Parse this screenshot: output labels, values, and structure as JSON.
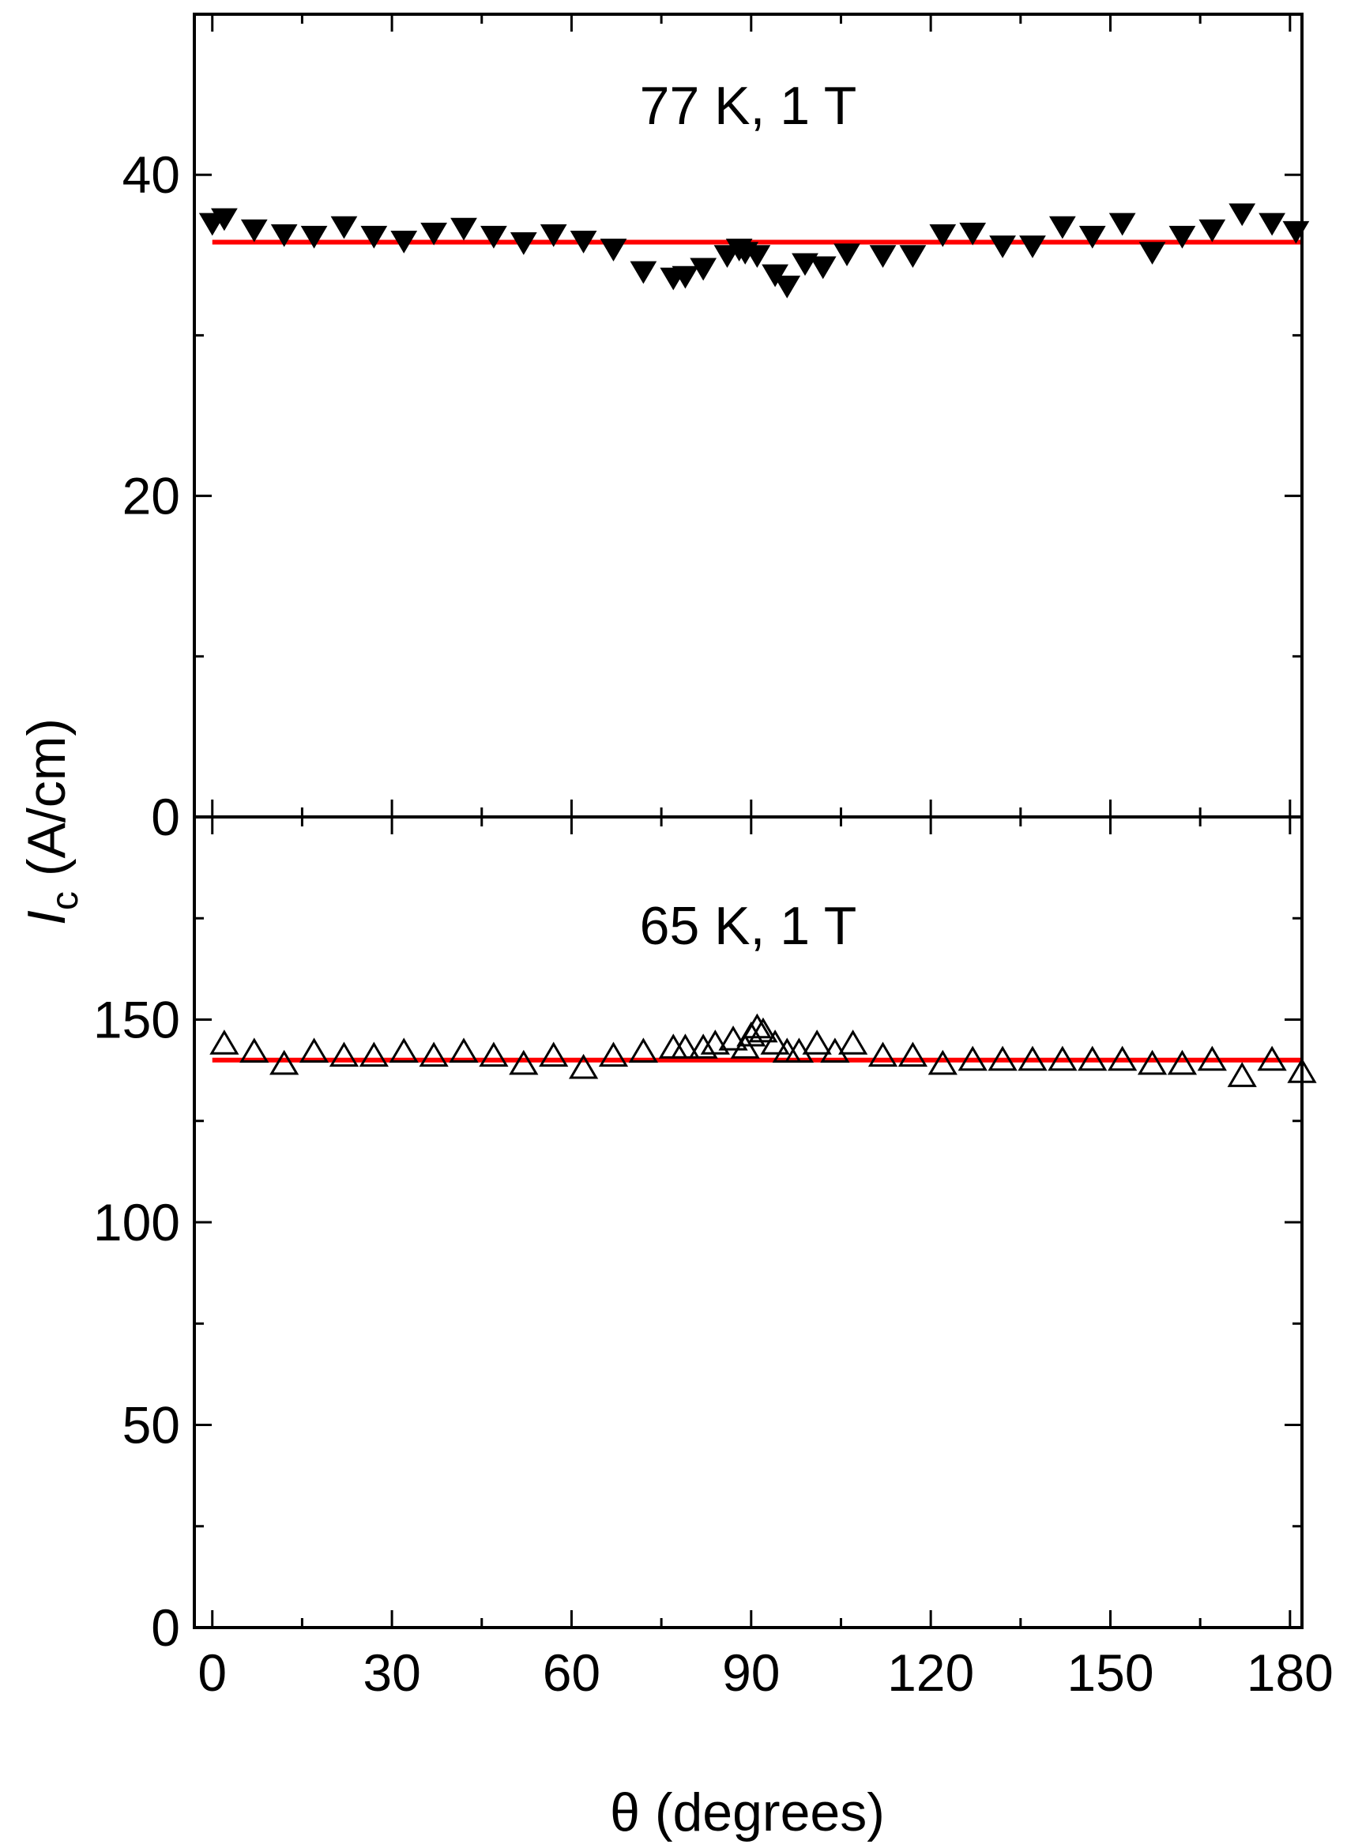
{
  "colors": {
    "fit_line": "#ff0000",
    "marker": "#000000",
    "frame": "#000000",
    "background": "#ffffff"
  },
  "chart_data": [
    {
      "type": "scatter",
      "panel": "top",
      "annotation": "77 K, 1 T",
      "xlim": [
        -3,
        182
      ],
      "ylim": [
        0,
        50
      ],
      "y_ticks": [
        0,
        20,
        40
      ],
      "y_minor_ticks": [
        10,
        30
      ],
      "marker": "filled-down-triangle",
      "x": [
        0,
        2,
        7,
        12,
        17,
        22,
        27,
        32,
        37,
        42,
        47,
        52,
        57,
        62,
        67,
        72,
        77,
        79,
        82,
        86,
        88,
        89,
        91,
        94,
        96,
        99,
        102,
        106,
        112,
        117,
        122,
        127,
        132,
        137,
        142,
        147,
        152,
        157,
        162,
        167,
        172,
        177,
        181
      ],
      "y": [
        37.0,
        37.3,
        36.6,
        36.3,
        36.2,
        36.8,
        36.2,
        35.9,
        36.4,
        36.7,
        36.2,
        35.8,
        36.3,
        35.9,
        35.4,
        34.0,
        33.6,
        33.7,
        34.2,
        35.0,
        35.4,
        35.2,
        35.0,
        33.8,
        33.1,
        34.5,
        34.3,
        35.1,
        35.0,
        35.0,
        36.3,
        36.4,
        35.6,
        35.6,
        36.8,
        36.2,
        37.0,
        35.2,
        36.2,
        36.6,
        37.6,
        37.0,
        36.5
      ],
      "fit": {
        "y": 35.8,
        "x_range": [
          0,
          182
        ]
      }
    },
    {
      "type": "scatter",
      "panel": "bottom",
      "annotation": "65 K, 1 T",
      "xlim": [
        -3,
        182
      ],
      "ylim": [
        0,
        200
      ],
      "y_ticks": [
        0,
        50,
        100,
        150
      ],
      "y_minor_ticks": [
        25,
        75,
        125,
        175
      ],
      "marker": "open-up-triangle",
      "x": [
        2,
        7,
        12,
        17,
        22,
        27,
        32,
        37,
        42,
        47,
        52,
        57,
        62,
        67,
        72,
        77,
        79,
        82,
        84,
        87,
        89,
        90,
        91,
        92,
        94,
        96,
        98,
        101,
        104,
        107,
        112,
        117,
        122,
        127,
        132,
        137,
        142,
        147,
        152,
        157,
        162,
        167,
        172,
        177,
        182
      ],
      "y": [
        144,
        142,
        139,
        142,
        141,
        141,
        142,
        141,
        142,
        141,
        139,
        141,
        138,
        141,
        142,
        143,
        143,
        143,
        144,
        145,
        143,
        146,
        148,
        147,
        144,
        142,
        142,
        144,
        142,
        144,
        141,
        141,
        139,
        140,
        140,
        140,
        140,
        140,
        140,
        139,
        139,
        140,
        136,
        140,
        137
      ],
      "fit": {
        "y": 140,
        "x_range": [
          0,
          182
        ]
      }
    }
  ],
  "x_axis": {
    "ticks": [
      0,
      30,
      60,
      90,
      120,
      150,
      180
    ],
    "minor_ticks": [
      15,
      45,
      75,
      105,
      135,
      165
    ],
    "label": "θ (degrees)"
  },
  "y_axis": {
    "label_italic": "I",
    "label_subscript": "c",
    "label_rest": " (A/cm)"
  }
}
